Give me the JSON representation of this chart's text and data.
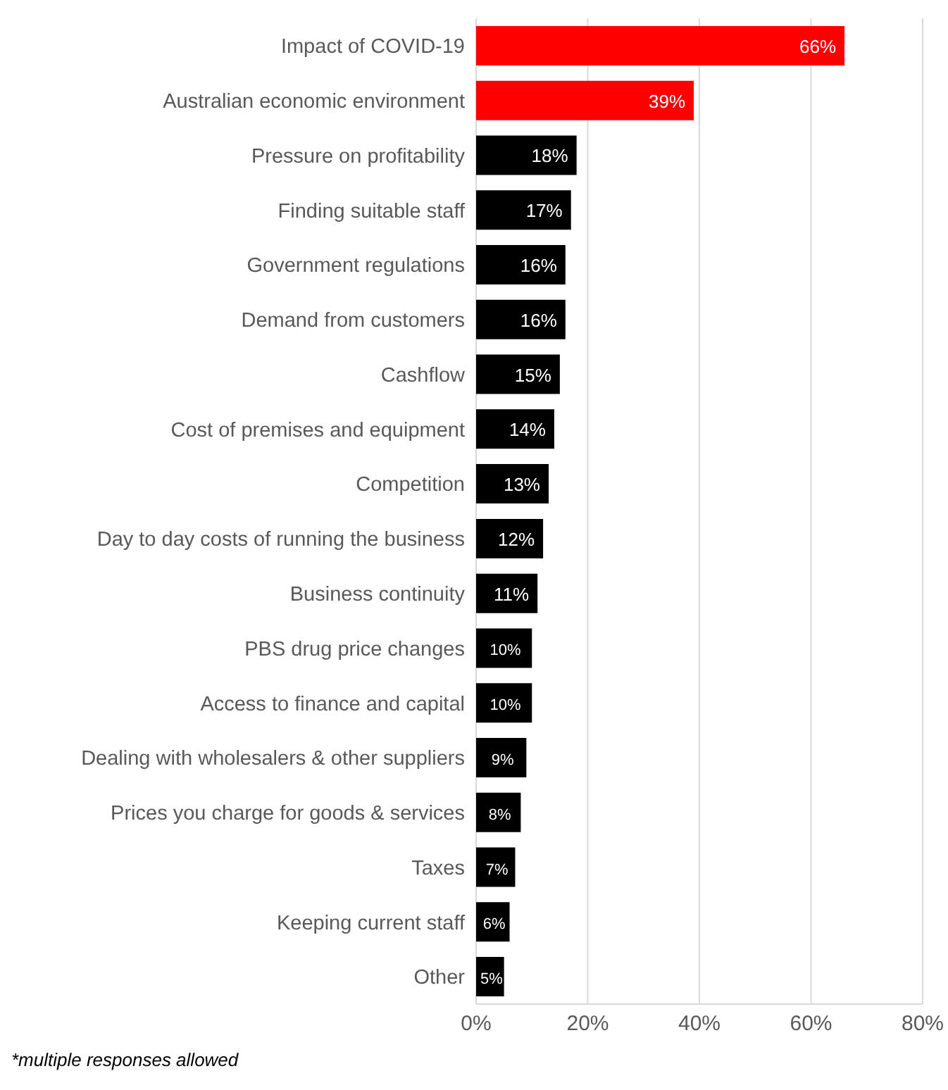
{
  "chart_data": {
    "type": "bar",
    "orientation": "horizontal",
    "categories": [
      "Impact of COVID-19",
      "Australian economic environment",
      "Pressure on profitability",
      "Finding suitable staff",
      "Government regulations",
      "Demand from customers",
      "Cashflow",
      "Cost of premises and equipment",
      "Competition",
      "Day to day costs of running the business",
      "Business continuity",
      "PBS drug price changes",
      "Access to finance and capital",
      "Dealing with wholesalers & other suppliers",
      "Prices you charge for goods & services",
      "Taxes",
      "Keeping current staff",
      "Other"
    ],
    "values": [
      66,
      39,
      18,
      17,
      16,
      16,
      15,
      14,
      13,
      12,
      11,
      10,
      10,
      9,
      8,
      7,
      6,
      5
    ],
    "value_labels": [
      "66%",
      "39%",
      "18%",
      "17%",
      "16%",
      "16%",
      "15%",
      "14%",
      "13%",
      "12%",
      "11%",
      "10%",
      "10%",
      "9%",
      "8%",
      "7%",
      "6%",
      "5%"
    ],
    "colors": [
      "#ff0000",
      "#ff0000",
      "#000000",
      "#000000",
      "#000000",
      "#000000",
      "#000000",
      "#000000",
      "#000000",
      "#000000",
      "#000000",
      "#000000",
      "#000000",
      "#000000",
      "#000000",
      "#000000",
      "#000000",
      "#000000"
    ],
    "xlim": [
      0,
      80
    ],
    "xticks": [
      {
        "value": 0,
        "label": "0%"
      },
      {
        "value": 20,
        "label": "20%"
      },
      {
        "value": 40,
        "label": "40%"
      },
      {
        "value": 60,
        "label": "60%"
      },
      {
        "value": 80,
        "label": "80%"
      }
    ],
    "grid": "x",
    "annotations": [
      "*multiple responses allowed"
    ]
  }
}
